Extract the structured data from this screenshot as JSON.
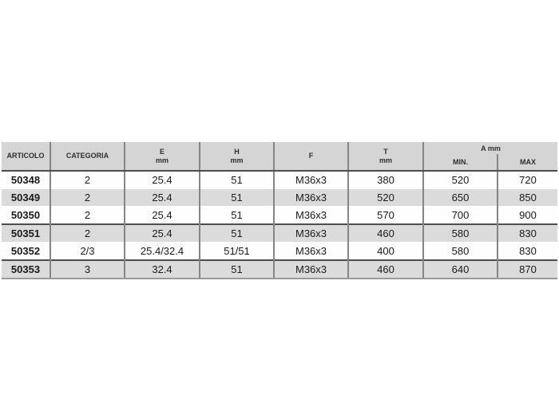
{
  "page": {
    "background": "#ffffff"
  },
  "colors": {
    "header_bg": "#d5d5d5",
    "stripe_bg": "#dbdbdb",
    "row_bg": "#ffffff",
    "heavy_line": "#4d4d4d",
    "column_line": "#858585",
    "bottom_line": "#9a9a9a",
    "text": "#1a1a1a"
  },
  "table": {
    "columns": [
      {
        "label": "ARTICOLO"
      },
      {
        "label": "CATEGORIA"
      },
      {
        "label": "E",
        "unit": "mm"
      },
      {
        "label": "H",
        "unit": "mm"
      },
      {
        "label": "F"
      },
      {
        "label": "T",
        "unit": "mm"
      },
      {
        "label": "A mm",
        "subcolumns": [
          "MIN.",
          "MAX"
        ]
      }
    ],
    "rows": [
      [
        "50348",
        "2",
        "25.4",
        "51",
        "M36x3",
        "380",
        "520",
        "720"
      ],
      [
        "50349",
        "2",
        "25.4",
        "51",
        "M36x3",
        "520",
        "650",
        "850"
      ],
      [
        "50350",
        "2",
        "25.4",
        "51",
        "M36x3",
        "570",
        "700",
        "900"
      ],
      [
        "50351",
        "2",
        "25.4",
        "51",
        "M36x3",
        "460",
        "580",
        "830"
      ],
      [
        "50352",
        "2/3",
        "25.4/32.4",
        "51/51",
        "M36x3",
        "400",
        "580",
        "830"
      ],
      [
        "50353",
        "3",
        "32.4",
        "51",
        "M36x3",
        "460",
        "640",
        "870"
      ]
    ],
    "thick_separator_before_rows": [
      3,
      5
    ]
  }
}
